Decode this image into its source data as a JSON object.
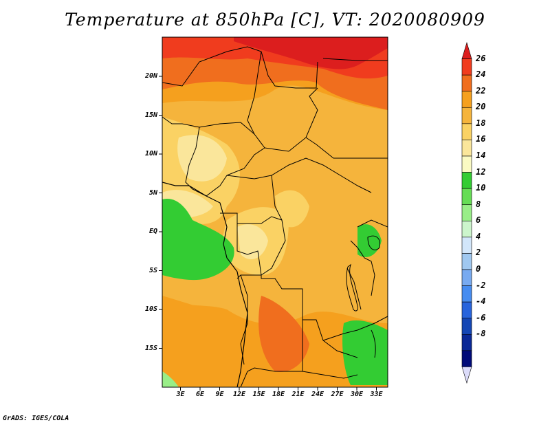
{
  "title": "Temperature at 850hPa [C], VT: 2020080909",
  "credit": "GrADS: IGES/COLA",
  "map": {
    "lat_labels": [
      {
        "lat": 20,
        "label": "20N"
      },
      {
        "lat": 15,
        "label": "15N"
      },
      {
        "lat": 10,
        "label": "10N"
      },
      {
        "lat": 5,
        "label": "5N"
      },
      {
        "lat": 0,
        "label": "EQ"
      },
      {
        "lat": -5,
        "label": "5S"
      },
      {
        "lat": -10,
        "label": "10S"
      },
      {
        "lat": -15,
        "label": "15S"
      }
    ],
    "lon_labels": [
      {
        "lon": 3,
        "label": "3E"
      },
      {
        "lon": 6,
        "label": "6E"
      },
      {
        "lon": 9,
        "label": "9E"
      },
      {
        "lon": 12,
        "label": "12E"
      },
      {
        "lon": 15,
        "label": "15E"
      },
      {
        "lon": 18,
        "label": "18E"
      },
      {
        "lon": 21,
        "label": "21E"
      },
      {
        "lon": 24,
        "label": "24E"
      },
      {
        "lon": 27,
        "label": "27E"
      },
      {
        "lon": 30,
        "label": "30E"
      },
      {
        "lon": 33,
        "label": "33E"
      }
    ],
    "lat_range": [
      -20,
      25
    ],
    "lon_range": [
      0,
      35
    ]
  },
  "colorbar": {
    "labels": [
      "26",
      "24",
      "22",
      "20",
      "18",
      "16",
      "14",
      "12",
      "10",
      "8",
      "6",
      "4",
      "2",
      "0",
      "-2",
      "-4",
      "-6",
      "-8"
    ],
    "colors": [
      "#dc1e1e",
      "#f03c1e",
      "#f06e1e",
      "#f5a01e",
      "#f5b43c",
      "#fad264",
      "#fae69b",
      "#fafac3",
      "#33cc33",
      "#66dd55",
      "#99ee88",
      "#ccf5cc",
      "#d2e6fa",
      "#a0c8f0",
      "#78aaf0",
      "#468cf0",
      "#2864dc",
      "#1446b4",
      "#0a2896",
      "#000a78",
      "#dcdcfa"
    ]
  }
}
